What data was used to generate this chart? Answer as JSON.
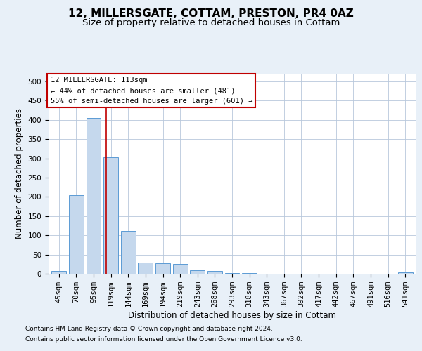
{
  "title": "12, MILLERSGATE, COTTAM, PRESTON, PR4 0AZ",
  "subtitle": "Size of property relative to detached houses in Cottam",
  "xlabel": "Distribution of detached houses by size in Cottam",
  "ylabel": "Number of detached properties",
  "categories": [
    "45sqm",
    "70sqm",
    "95sqm",
    "119sqm",
    "144sqm",
    "169sqm",
    "194sqm",
    "219sqm",
    "243sqm",
    "268sqm",
    "293sqm",
    "318sqm",
    "343sqm",
    "367sqm",
    "392sqm",
    "417sqm",
    "442sqm",
    "467sqm",
    "491sqm",
    "516sqm",
    "541sqm"
  ],
  "values": [
    8,
    205,
    405,
    303,
    112,
    30,
    28,
    25,
    9,
    7,
    2,
    1,
    0,
    0,
    0,
    0,
    0,
    0,
    0,
    0,
    3
  ],
  "bar_color": "#c5d8ed",
  "bar_edge_color": "#5b9bd5",
  "marker_line_color": "#c00000",
  "annotation_line1": "12 MILLERSGATE: 113sqm",
  "annotation_line2": "← 44% of detached houses are smaller (481)",
  "annotation_line3": "55% of semi-detached houses are larger (601) →",
  "annotation_box_color": "#ffffff",
  "annotation_box_edge_color": "#c00000",
  "ylim": [
    0,
    520
  ],
  "yticks": [
    0,
    50,
    100,
    150,
    200,
    250,
    300,
    350,
    400,
    450,
    500
  ],
  "footer1": "Contains HM Land Registry data © Crown copyright and database right 2024.",
  "footer2": "Contains public sector information licensed under the Open Government Licence v3.0.",
  "background_color": "#e8f0f8",
  "plot_background": "#ffffff",
  "title_fontsize": 11,
  "subtitle_fontsize": 9.5,
  "ylabel_fontsize": 8.5,
  "xlabel_fontsize": 8.5,
  "tick_fontsize": 7.5,
  "annotation_fontsize": 7.5,
  "footer_fontsize": 6.5
}
